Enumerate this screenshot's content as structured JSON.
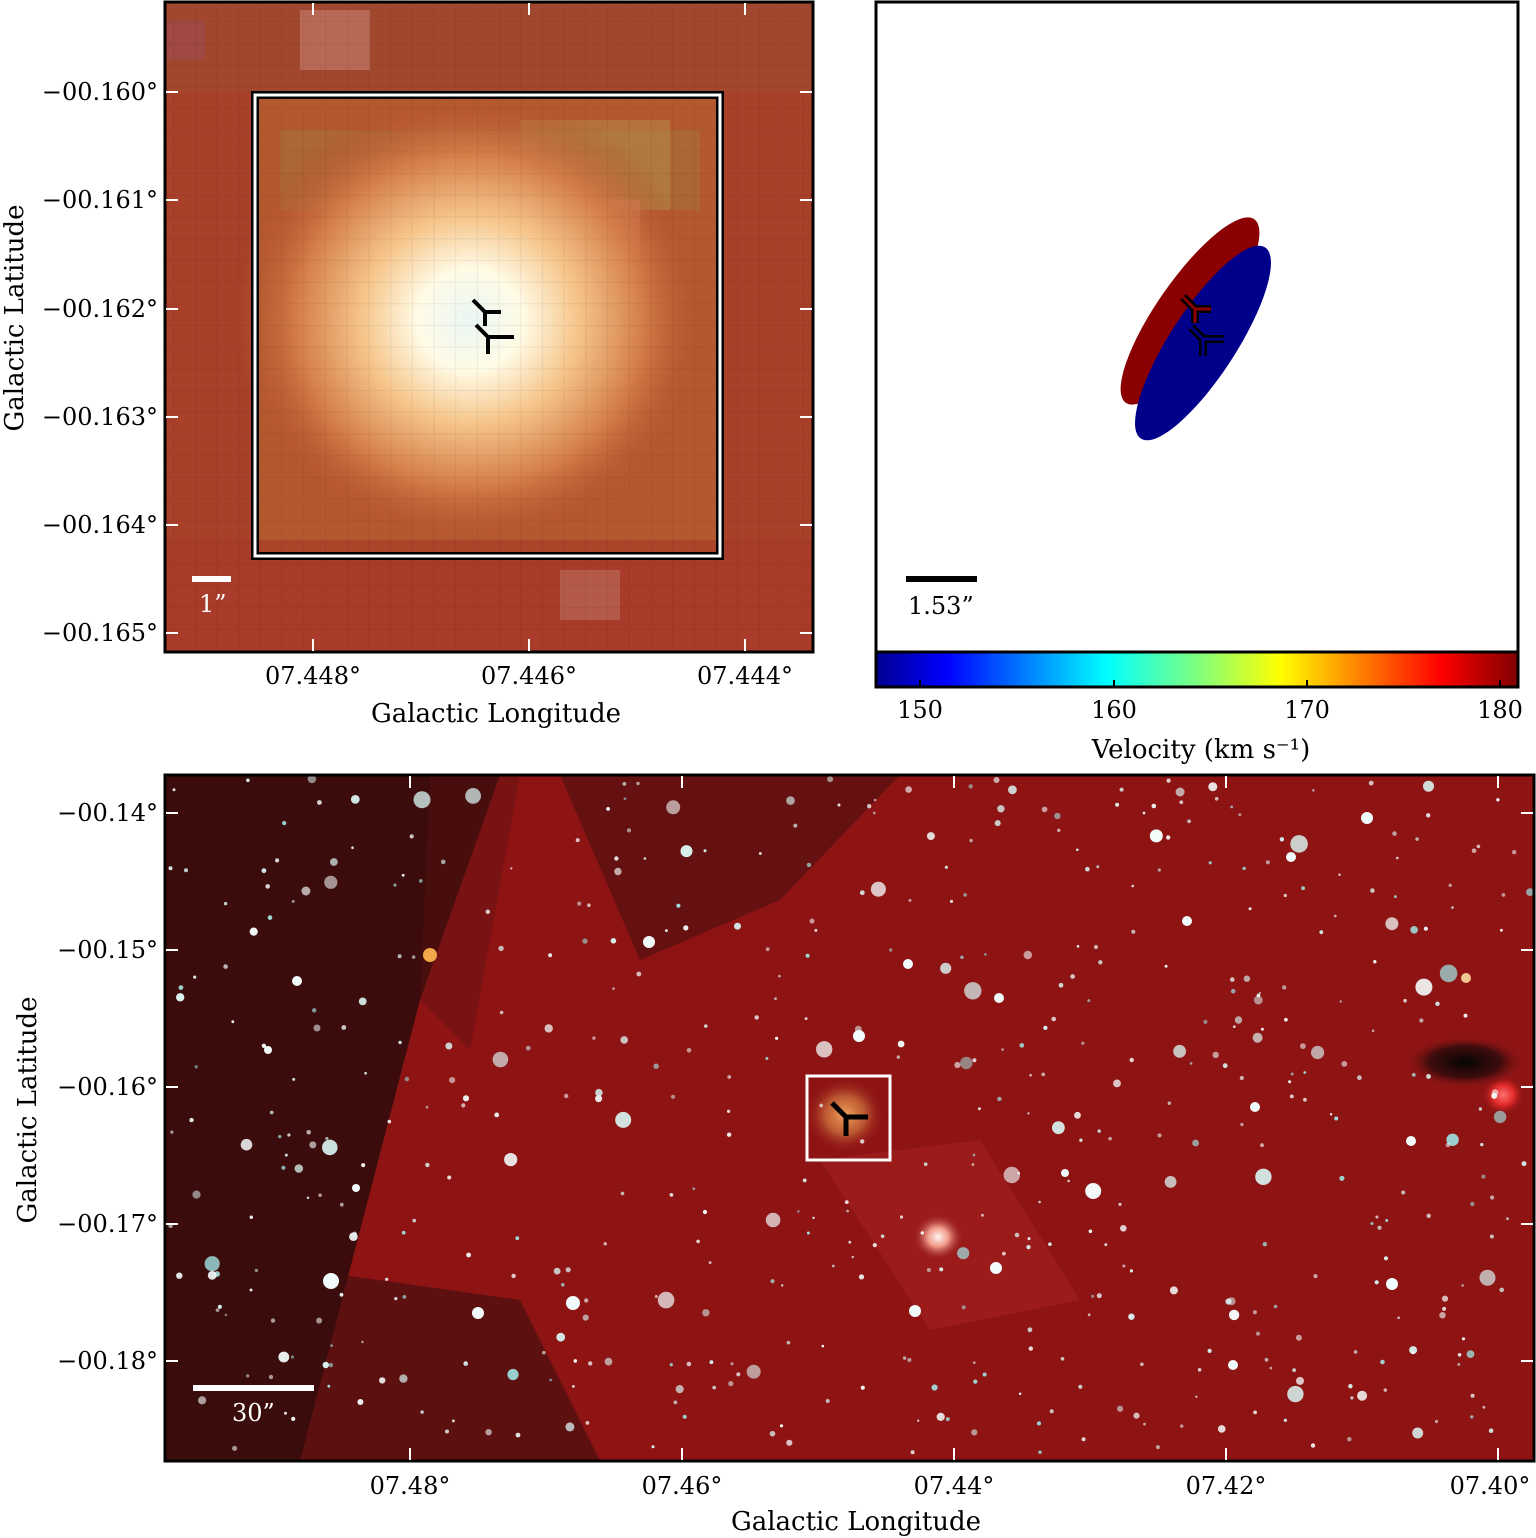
{
  "zoom_panel": {
    "ylabel": "Galactic Latitude",
    "xlabel": "Galactic Longitude",
    "y_ticks": [
      "−00.160°",
      "−00.161°",
      "−00.162°",
      "−00.163°",
      "−00.164°",
      "−00.165°"
    ],
    "x_ticks": [
      "07.448°",
      "07.446°",
      "07.444°"
    ],
    "scalebar_label": "1”",
    "colors": {
      "background": "#a8402a",
      "core": "#fdf6ea",
      "halo": "#f3b270"
    }
  },
  "velocity_panel": {
    "scalebar_label": "1.53”",
    "colorbar_label": "Velocity (km s⁻¹)",
    "colorbar_ticks": [
      "150",
      "160",
      "170",
      "180"
    ],
    "colorbar_range": [
      148,
      181
    ],
    "lobes": [
      {
        "name": "red-lobe",
        "color": "#8b0000"
      },
      {
        "name": "blue-lobe",
        "color": "#00008b"
      }
    ]
  },
  "overview_panel": {
    "ylabel": "Galactic Latitude",
    "xlabel": "Galactic Longitude",
    "y_ticks": [
      "−00.14°",
      "−00.15°",
      "−00.16°",
      "−00.17°",
      "−00.18°"
    ],
    "x_ticks": [
      "07.48°",
      "07.46°",
      "07.44°",
      "07.42°",
      "07.40°"
    ],
    "scalebar_label": "30”",
    "colors": {
      "background": "#8e1414",
      "dark_lane": "#3a0d0d",
      "star": "#cfeff0"
    }
  }
}
